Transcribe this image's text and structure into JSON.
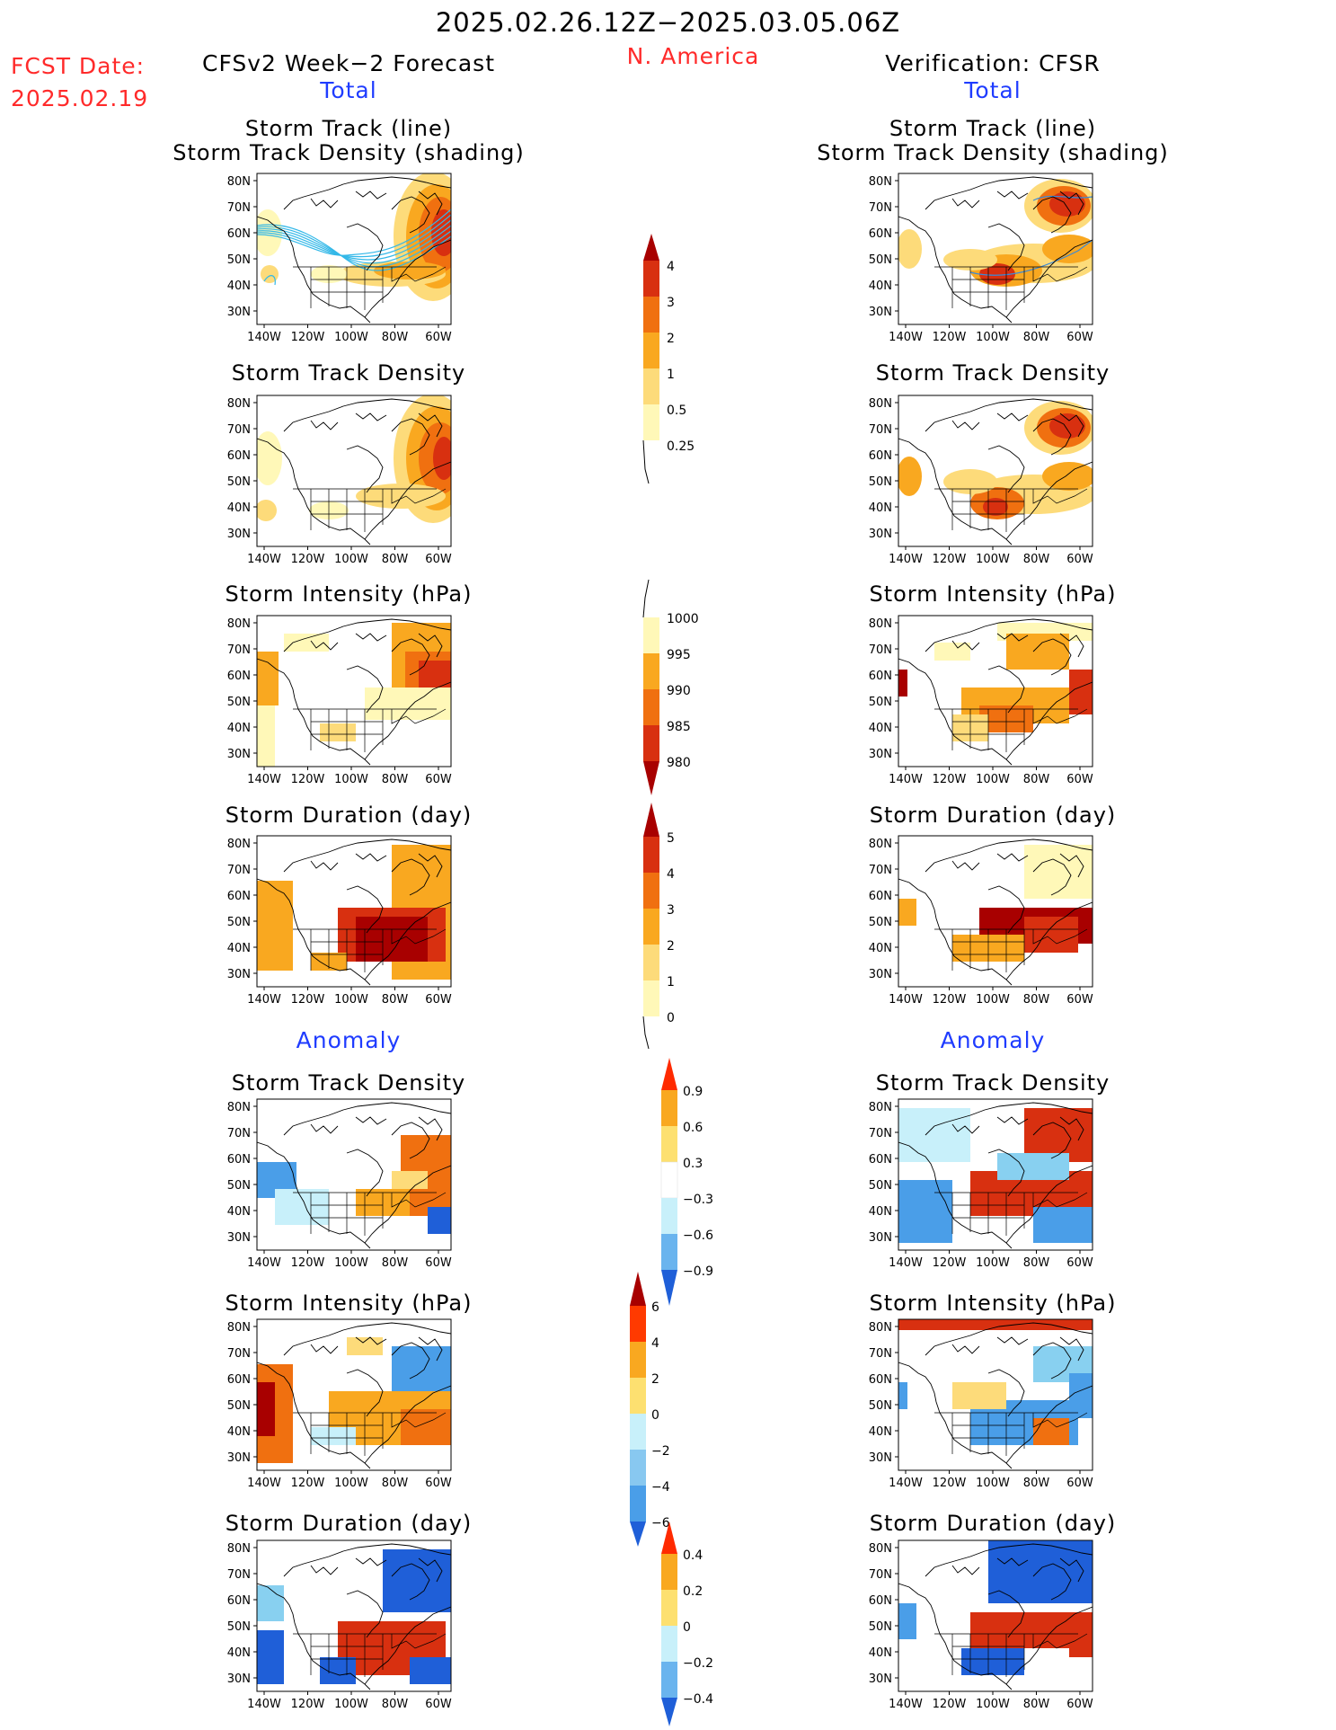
{
  "header": {
    "date_range": "2025.02.26.12Z−2025.03.05.06Z",
    "fcst_label": "FCST Date:",
    "fcst_date": "2025.02.19",
    "region": "N. America",
    "left_title": "CFSv2 Week−2 Forecast",
    "right_title": "Verification: CFSR",
    "total_label": "Total",
    "anomaly_label": "Anomaly"
  },
  "panel_titles": {
    "track": [
      "Storm Track (line)",
      "Storm Track Density (shading)"
    ],
    "density": "Storm Track Density",
    "intensity": "Storm Intensity (hPa)",
    "duration": "Storm Duration (day)"
  },
  "axes": {
    "lat_labels": [
      "80N",
      "70N",
      "60N",
      "50N",
      "40N",
      "30N"
    ],
    "lon_labels": [
      "140W",
      "120W",
      "100W",
      "80W",
      "60W"
    ]
  },
  "colorbars": {
    "density_total": [
      "0.25",
      "0.5",
      "1",
      "2",
      "3",
      "4"
    ],
    "intensity_total": [
      "1000",
      "995",
      "990",
      "985",
      "980"
    ],
    "duration_total": [
      "0",
      "1",
      "2",
      "3",
      "4",
      "5"
    ],
    "density_anom": [
      "0.9",
      "0.6",
      "0.3",
      "−0.3",
      "−0.6",
      "−0.9"
    ],
    "intensity_anom": [
      "6",
      "4",
      "2",
      "0",
      "−2",
      "−4",
      "−6"
    ],
    "duration_anom": [
      "0.4",
      "0.2",
      "0",
      "−0.2",
      "−0.4"
    ]
  },
  "colors": {
    "warm": [
      "#fff8b8",
      "#fddb7a",
      "#f9a820",
      "#f07010",
      "#d83010",
      "#a80000"
    ],
    "cool": [
      "#c8f0fa",
      "#88d0f0",
      "#4a9ee8",
      "#1f5fd8"
    ],
    "track_line_forecast": "#33b8e8",
    "track_line_verify": "#3a8ad8",
    "title_red": "#ff2a2a",
    "label_blue": "#1f3cff"
  }
}
